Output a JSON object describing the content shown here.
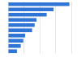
{
  "chart_data": {
    "type": "bar",
    "orientation": "horizontal",
    "categories": [
      null,
      null,
      null,
      null,
      null,
      null,
      null,
      null,
      null,
      null
    ],
    "values": [
      97,
      72,
      61,
      45,
      42,
      38,
      27,
      24,
      20,
      14
    ],
    "color": "#2e75d6",
    "xlim": [
      0,
      100
    ],
    "xticks": [
      0,
      25,
      50,
      75,
      100
    ],
    "grid": true,
    "tick_labels": false
  }
}
